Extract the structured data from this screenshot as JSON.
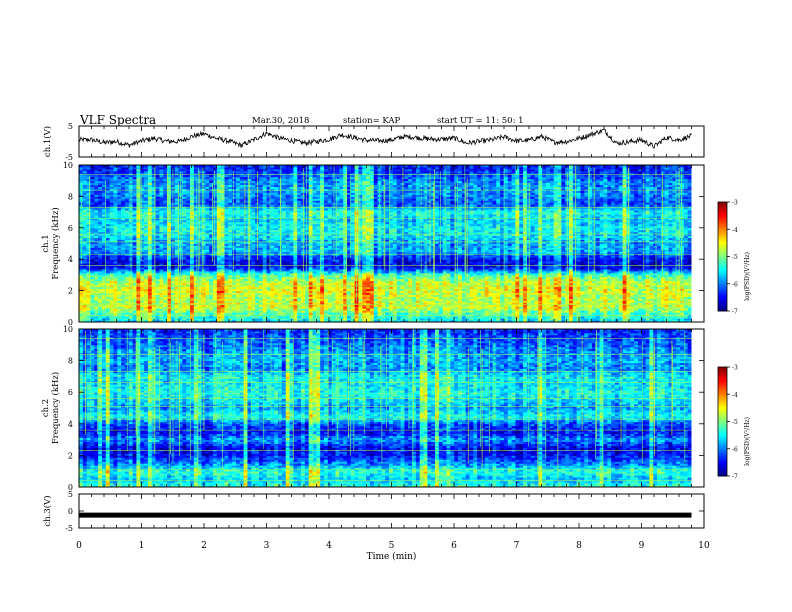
{
  "header": {
    "title": "VLF Spectra",
    "date": "Mar.30, 2018",
    "station": "station= KAP",
    "start_time": "start  UT =   11: 50: 1"
  },
  "chart_data": [
    {
      "type": "line",
      "id": "ch1-waveform",
      "ylabel": "ch.1(V)",
      "ylim": [
        -5,
        5
      ],
      "yticks": [
        "5",
        "-5"
      ],
      "xlim": [
        0,
        10
      ],
      "series": [
        {
          "x": [
            0,
            0.2,
            0.4,
            0.6,
            0.8,
            1.0,
            1.2,
            1.4,
            1.6,
            1.8,
            2.0,
            2.2,
            2.4,
            2.6,
            2.8,
            3.0,
            3.2,
            3.4,
            3.6,
            3.8,
            4.0,
            4.2,
            4.4,
            4.6,
            4.8,
            5.0,
            5.2,
            5.4,
            5.6,
            5.8,
            6.0,
            6.2,
            6.4,
            6.6,
            6.8,
            7.0,
            7.2,
            7.4,
            7.6,
            7.8,
            8.0,
            8.2,
            8.4,
            8.6,
            8.8,
            9.0,
            9.2,
            9.4,
            9.6,
            9.8
          ],
          "values": [
            0.5,
            0.6,
            -0.4,
            0.0,
            -1.2,
            0.2,
            1.0,
            0.1,
            0.0,
            1.6,
            2.5,
            1.0,
            0.1,
            -1.3,
            0.6,
            2.7,
            1.1,
            0.3,
            -0.5,
            0.0,
            0.7,
            2.2,
            1.3,
            0.4,
            0.2,
            0.5,
            1.6,
            1.3,
            0.8,
            0.7,
            1.1,
            -0.5,
            0.0,
            0.5,
            1.5,
            0.2,
            0.4,
            1.6,
            -0.2,
            0.0,
            1.0,
            2.3,
            3.7,
            -0.6,
            -0.1,
            0.5,
            -1.6,
            1.3,
            0.5,
            1.8
          ]
        }
      ]
    },
    {
      "type": "heatmap",
      "id": "ch1-spectrogram",
      "ylabel": "ch.1\nFrequency (kHz)",
      "ylim": [
        0,
        10
      ],
      "yticks": [
        "0",
        "2",
        "4",
        "6",
        "8",
        "10"
      ],
      "xlim": [
        0,
        10
      ],
      "colorbar": {
        "label": "log(PSD)(V²/Hz)",
        "range": [
          -7,
          -3
        ],
        "ticks": [
          "-3",
          "-4",
          "-5",
          "-6",
          "-7"
        ]
      },
      "band_profile_log_psd": [
        -5.6,
        -5.2,
        -4.7,
        -4.8,
        -4.6,
        -4.7,
        -5.2,
        -6.6,
        -6.5,
        -5.8,
        -5.9,
        -5.6,
        -5.5,
        -5.7,
        -5.4,
        -6.2,
        -6.0,
        -5.9,
        -6.0,
        -6.3,
        -6.4
      ]
    },
    {
      "type": "heatmap",
      "id": "ch2-spectrogram",
      "ylabel": "ch.2\nFrequency (kHz)",
      "ylim": [
        0,
        10
      ],
      "yticks": [
        "0",
        "2",
        "4",
        "6",
        "8",
        "10"
      ],
      "xlim": [
        0,
        10
      ],
      "colorbar": {
        "label": "log(PSD)(V²/Hz)",
        "range": [
          -7,
          -3
        ],
        "ticks": [
          "-3",
          "-4",
          "-5",
          "-6",
          "-7"
        ]
      },
      "band_profile_log_psd": [
        -5.3,
        -5.7,
        -5.3,
        -6.0,
        -6.4,
        -6.6,
        -5.9,
        -6.5,
        -6.2,
        -5.4,
        -5.9,
        -5.6,
        -5.4,
        -5.6,
        -5.5,
        -6.0,
        -5.8,
        -5.9,
        -6.1,
        -6.2,
        -6.4
      ]
    },
    {
      "type": "line",
      "id": "ch3-waveform",
      "ylabel": "ch.3(V)",
      "ylim": [
        -5,
        5
      ],
      "yticks": [
        "5",
        "0",
        "-5"
      ],
      "xlim": [
        0,
        10
      ],
      "xlabel": "Time (min)",
      "xticks": [
        "0",
        "1",
        "2",
        "3",
        "4",
        "5",
        "6",
        "7",
        "8",
        "9",
        "10"
      ],
      "series": [
        {
          "x": [
            0,
            9.8
          ],
          "values": [
            -1.2,
            -1.2
          ]
        }
      ]
    }
  ]
}
